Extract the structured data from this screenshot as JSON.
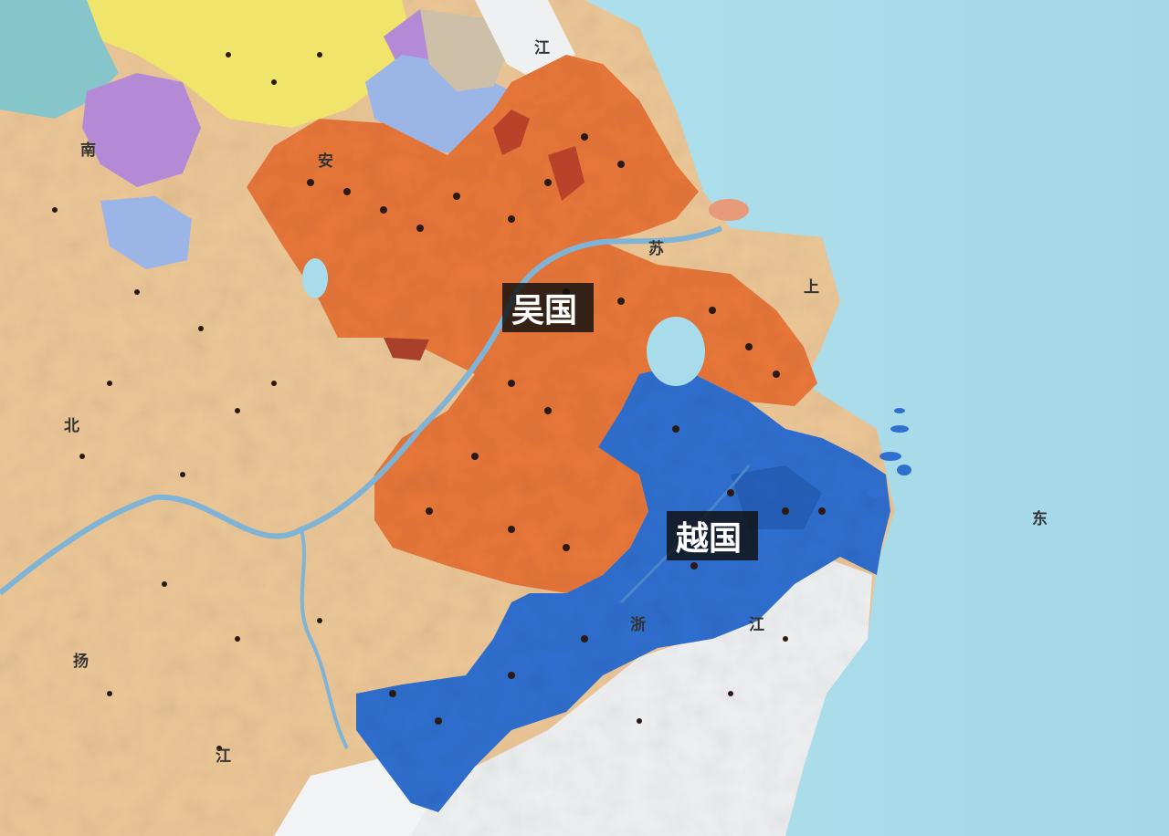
{
  "regions": {
    "wu": {
      "label": "吴国",
      "color": "#e8773a"
    },
    "yue": {
      "label": "越国",
      "color": "#2f6fcf"
    }
  },
  "map_labels": [
    "江",
    "安",
    "南",
    "北",
    "苏",
    "上",
    "浙",
    "江",
    "东",
    "扬",
    "江"
  ],
  "colors": {
    "sea": "#a9dcea",
    "land": "#ecc797",
    "north_yellow": "#f1e46a",
    "purple": "#b48ad6",
    "light_blue": "#9bb5e6",
    "teal": "#86c5c9",
    "white_land": "#eef0f2"
  }
}
